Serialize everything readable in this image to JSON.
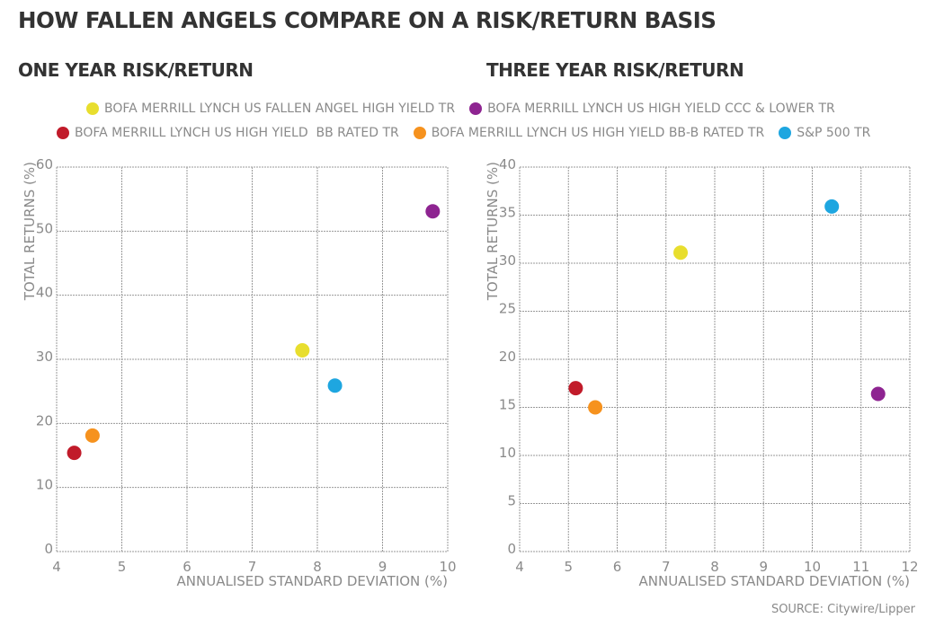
{
  "title": "HOW FALLEN ANGELS COMPARE ON A RISK/RETURN BASIS",
  "legend": [
    {
      "label": "BOFA MERRILL LYNCH US FALLEN ANGEL HIGH YIELD TR",
      "color": "#e8de2e"
    },
    {
      "label": "BOFA MERRILL LYNCH US HIGH YIELD CCC & LOWER TR",
      "color": "#8e2491"
    },
    {
      "label": "BOFA MERRILL LYNCH US HIGH YIELD  BB RATED TR",
      "color": "#c11b2a"
    },
    {
      "label": "BOFA MERRILL LYNCH US HIGH YIELD BB-B RATED TR",
      "color": "#f6921e"
    },
    {
      "label": "S&P 500 TR",
      "color": "#1ea6e0"
    }
  ],
  "source": "SOURCE: Citywire/Lipper",
  "chart_data": [
    {
      "type": "scatter",
      "title": "ONE YEAR RISK/RETURN",
      "xlabel": "ANNUALISED STANDARD DEVIATION (%)",
      "ylabel": "TOTAL RETURNS (%)",
      "xlim": [
        4,
        10
      ],
      "ylim": [
        0,
        60
      ],
      "xticks": [
        4,
        5,
        6,
        7,
        8,
        9,
        10
      ],
      "yticks": [
        0,
        10,
        20,
        30,
        40,
        50,
        60
      ],
      "grid": true,
      "points": [
        {
          "series": 0,
          "x": 7.77,
          "y": 31.4
        },
        {
          "series": 1,
          "x": 9.77,
          "y": 53.1
        },
        {
          "series": 2,
          "x": 4.27,
          "y": 15.4
        },
        {
          "series": 3,
          "x": 4.55,
          "y": 18.1
        },
        {
          "series": 4,
          "x": 8.27,
          "y": 25.9
        }
      ]
    },
    {
      "type": "scatter",
      "title": "THREE YEAR RISK/RETURN",
      "xlabel": "ANNUALISED STANDARD DEVIATION (%)",
      "ylabel": "TOTAL RETURNS (%)",
      "xlim": [
        4,
        12
      ],
      "ylim": [
        0,
        40
      ],
      "xticks": [
        4,
        5,
        6,
        7,
        8,
        9,
        10,
        11,
        12
      ],
      "yticks": [
        0,
        5,
        10,
        15,
        20,
        25,
        30,
        35,
        40
      ],
      "grid": true,
      "points": [
        {
          "series": 0,
          "x": 7.3,
          "y": 31.1
        },
        {
          "series": 1,
          "x": 11.35,
          "y": 16.4
        },
        {
          "series": 2,
          "x": 5.15,
          "y": 17.0
        },
        {
          "series": 3,
          "x": 5.55,
          "y": 15.0
        },
        {
          "series": 4,
          "x": 10.4,
          "y": 35.9
        }
      ]
    }
  ]
}
